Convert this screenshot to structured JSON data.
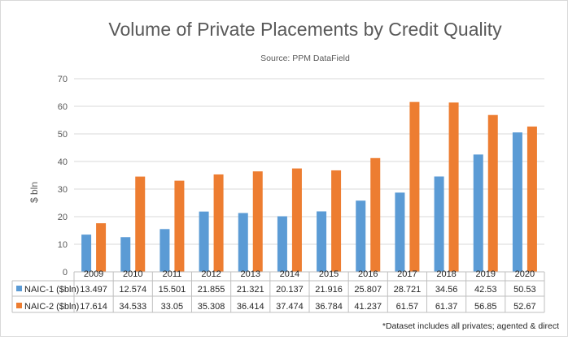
{
  "chart_data": {
    "type": "bar",
    "title": "Volume of Private Placements by Credit Quality",
    "subtitle": "Source: PPM DataField",
    "ylabel": "$ bln",
    "ylim": [
      0,
      70
    ],
    "yticks": [
      0,
      10,
      20,
      30,
      40,
      50,
      60,
      70
    ],
    "grid": true,
    "categories": [
      "2009",
      "2010",
      "2011",
      "2012",
      "2013",
      "2014",
      "2015",
      "2016",
      "2017",
      "2018",
      "2019",
      "2020"
    ],
    "series": [
      {
        "name": "NAIC-1 ($bln)",
        "color": "#5b9bd5",
        "values": [
          13.497,
          12.574,
          15.501,
          21.855,
          21.321,
          20.137,
          21.916,
          25.807,
          28.721,
          34.56,
          42.53,
          50.53
        ],
        "labels": [
          "13.497",
          "12.574",
          "15.501",
          "21.855",
          "21.321",
          "20.137",
          "21.916",
          "25.807",
          "28.721",
          "34.56",
          "42.53",
          "50.53"
        ]
      },
      {
        "name": "NAIC-2 ($bln)",
        "color": "#ed7d31",
        "values": [
          17.614,
          34.533,
          33.05,
          35.308,
          36.414,
          37.474,
          36.784,
          41.237,
          61.57,
          61.37,
          56.85,
          52.67
        ],
        "labels": [
          "17.614",
          "34.533",
          "33.05",
          "35.308",
          "36.414",
          "37.474",
          "36.784",
          "41.237",
          "61.57",
          "61.37",
          "56.85",
          "52.67"
        ]
      }
    ],
    "footnote": "*Dataset includes all privates; agented & direct"
  }
}
